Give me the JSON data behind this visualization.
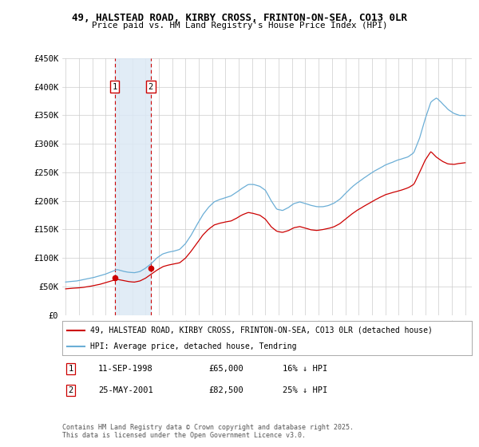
{
  "title": "49, HALSTEAD ROAD, KIRBY CROSS, FRINTON-ON-SEA, CO13 0LR",
  "subtitle": "Price paid vs. HM Land Registry's House Price Index (HPI)",
  "background_color": "#ffffff",
  "grid_color": "#cccccc",
  "hpi_color": "#6baed6",
  "price_color": "#cc0000",
  "purchase1_date": 1998.69,
  "purchase1_price": 65000,
  "purchase2_date": 2001.39,
  "purchase2_price": 82500,
  "ylim": [
    0,
    450000
  ],
  "yticks": [
    0,
    50000,
    100000,
    150000,
    200000,
    250000,
    300000,
    350000,
    400000,
    450000
  ],
  "ytick_labels": [
    "£0",
    "£50K",
    "£100K",
    "£150K",
    "£200K",
    "£250K",
    "£300K",
    "£350K",
    "£400K",
    "£450K"
  ],
  "legend_label1": "49, HALSTEAD ROAD, KIRBY CROSS, FRINTON-ON-SEA, CO13 0LR (detached house)",
  "legend_label2": "HPI: Average price, detached house, Tendring",
  "table_row1": [
    "1",
    "11-SEP-1998",
    "£65,000",
    "16% ↓ HPI"
  ],
  "table_row2": [
    "2",
    "25-MAY-2001",
    "£82,500",
    "25% ↓ HPI"
  ],
  "copyright": "Contains HM Land Registry data © Crown copyright and database right 2025.\nThis data is licensed under the Open Government Licence v3.0."
}
